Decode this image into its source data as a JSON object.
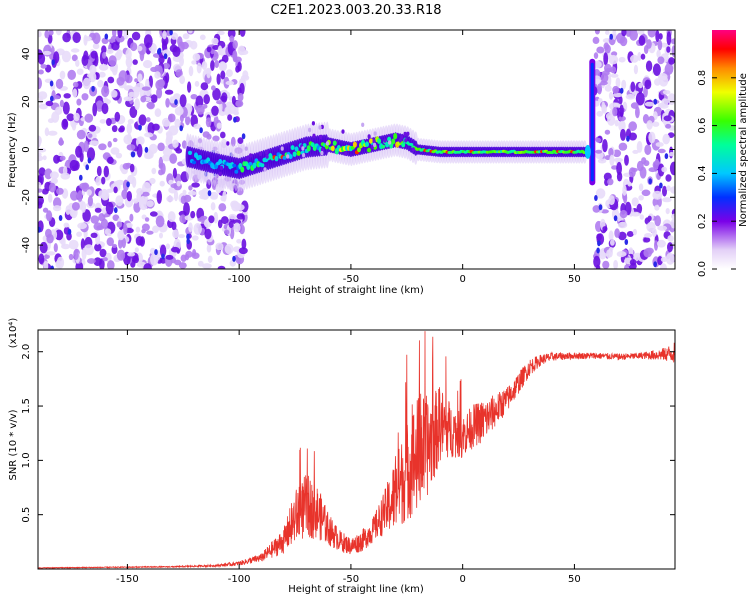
{
  "figure": {
    "title": "C2E1.2023.003.20.33.R18"
  },
  "chart_data": [
    {
      "type": "heatmap",
      "xlabel": "Height of straight line (km)",
      "ylabel": "Frequency (Hz)",
      "xlim": [
        -190,
        95
      ],
      "ylim": [
        -50,
        50
      ],
      "xticks": [
        -150,
        -100,
        -50,
        0,
        50
      ],
      "yticks": [
        -40,
        -20,
        0,
        20,
        40
      ],
      "colorbar": {
        "label": "Normalized spectral amplitude",
        "range": [
          0,
          1
        ],
        "ticks": [
          "0.0",
          "0.2",
          "0.4",
          "0.6",
          "0.8"
        ],
        "colormap": "rainbow (violet → blue → cyan → green → yellow → red → magenta)"
      },
      "ridge": {
        "description_points_x": [
          -123,
          -110,
          -100,
          -90,
          -80,
          -70,
          -60,
          -50,
          -40,
          -30,
          -25,
          -20,
          -10,
          0,
          10,
          20,
          30,
          40,
          50,
          55
        ],
        "description_points_y": [
          -3,
          -6,
          -8,
          -5,
          -2,
          1,
          2,
          0,
          2,
          4,
          3,
          0,
          -1,
          -1,
          -1,
          -1,
          -1,
          -1,
          -1,
          -1
        ],
        "peak_amplitude": 1.0
      },
      "noise_regions": [
        {
          "x_from": -190,
          "x_to": -97,
          "amplitude": 0.2
        },
        {
          "x_from": 59,
          "x_to": 95,
          "amplitude": 0.2
        }
      ],
      "spike": {
        "x": 58,
        "y_from": -15,
        "y_to": 38
      }
    },
    {
      "type": "line",
      "xlabel": "Height of straight line (km)",
      "ylabel": "SNR (10 * v/v)",
      "multiplier": "(x10⁴)",
      "xlim": [
        -190,
        95
      ],
      "ylim": [
        0,
        2.2
      ],
      "xticks": [
        -150,
        -100,
        -50,
        0,
        50
      ],
      "yticks": [
        "0.5",
        "1.0",
        "1.5",
        "2.0"
      ],
      "series": [
        {
          "color": "#e8332b",
          "envelope_x": [
            -190,
            -130,
            -110,
            -100,
            -90,
            -80,
            -75,
            -70,
            -65,
            -60,
            -55,
            -50,
            -45,
            -40,
            -35,
            -30,
            -25,
            -20,
            -15,
            -10,
            -5,
            0,
            5,
            10,
            15,
            20,
            25,
            30,
            35,
            40,
            50,
            60,
            70,
            80,
            90,
            95
          ],
          "envelope_y": [
            0.01,
            0.02,
            0.03,
            0.05,
            0.1,
            0.25,
            0.45,
            0.55,
            0.5,
            0.35,
            0.25,
            0.2,
            0.25,
            0.35,
            0.5,
            0.65,
            0.85,
            1.0,
            1.1,
            1.3,
            1.25,
            1.2,
            1.3,
            1.35,
            1.45,
            1.55,
            1.7,
            1.85,
            1.92,
            1.95,
            1.96,
            1.96,
            1.95,
            1.96,
            1.97,
            1.98
          ],
          "noise_amplitude": [
            0.003,
            0.005,
            0.01,
            0.02,
            0.04,
            0.12,
            0.25,
            0.3,
            0.25,
            0.15,
            0.1,
            0.08,
            0.1,
            0.12,
            0.2,
            0.35,
            0.45,
            0.55,
            0.45,
            0.35,
            0.25,
            0.2,
            0.2,
            0.2,
            0.15,
            0.12,
            0.1,
            0.08,
            0.05,
            0.04,
            0.03,
            0.03,
            0.03,
            0.03,
            0.06,
            0.1
          ],
          "sample_step": 0.12
        }
      ]
    }
  ]
}
